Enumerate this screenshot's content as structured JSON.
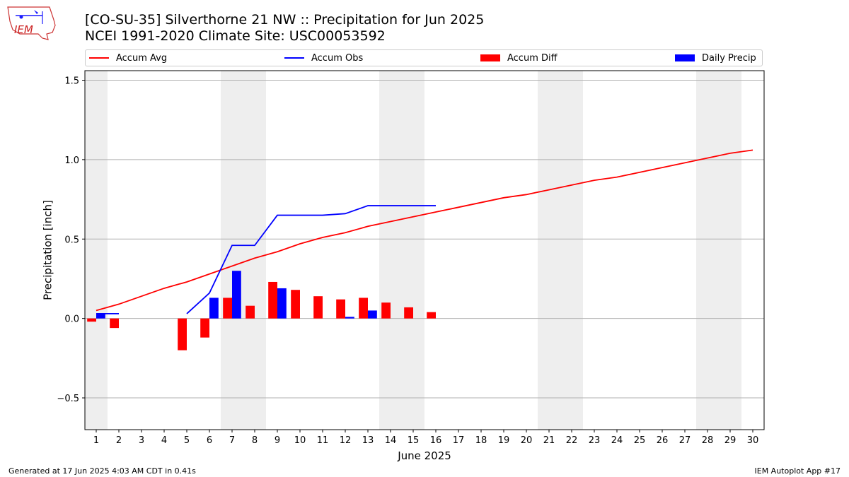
{
  "header": {
    "logo_text": "IEM",
    "title_line1": "[CO-SU-35] Silverthorne 21 NW :: Precipitation for Jun 2025",
    "title_line2": "NCEI 1991-2020 Climate Site: USC00053592"
  },
  "footer": {
    "generated": "Generated at 17 Jun 2025 4:03 AM CDT in 0.41s",
    "app": "IEM Autoplot App #17"
  },
  "colors": {
    "avg": "#ff0000",
    "obs": "#0000ff",
    "weekend_shade": "#eeeeee",
    "grid": "#b0b0b0"
  },
  "chart_data": {
    "type": "bar",
    "xlabel": "June 2025",
    "ylabel": "Precipitation [inch]",
    "xlim": [
      0.5,
      30.5
    ],
    "ylim": [
      -0.7,
      1.56
    ],
    "yticks": [
      -0.5,
      0.0,
      0.5,
      1.0,
      1.5
    ],
    "ytick_labels": [
      "−0.5",
      "0.0",
      "0.5",
      "1.0",
      "1.5"
    ],
    "x_ticks": [
      1,
      2,
      3,
      4,
      5,
      6,
      7,
      8,
      9,
      10,
      11,
      12,
      13,
      14,
      15,
      16,
      17,
      18,
      19,
      20,
      21,
      22,
      23,
      24,
      25,
      26,
      27,
      28,
      29,
      30
    ],
    "grid": "horizontal",
    "legend_position": "top",
    "weekend_shaded_days": [
      1,
      7,
      8,
      14,
      15,
      21,
      22,
      28,
      29
    ],
    "series": [
      {
        "name": "Accum Avg",
        "kind": "line",
        "x": [
          1,
          2,
          3,
          4,
          5,
          6,
          7,
          8,
          9,
          10,
          11,
          12,
          13,
          14,
          15,
          16,
          17,
          18,
          19,
          20,
          21,
          22,
          23,
          24,
          25,
          26,
          27,
          28,
          29,
          30
        ],
        "values": [
          0.05,
          0.09,
          0.14,
          0.19,
          0.23,
          0.28,
          0.33,
          0.38,
          0.42,
          0.47,
          0.51,
          0.54,
          0.58,
          0.61,
          0.64,
          0.67,
          0.7,
          0.73,
          0.76,
          0.78,
          0.81,
          0.84,
          0.87,
          0.89,
          0.92,
          0.95,
          0.98,
          1.01,
          1.04,
          1.06
        ]
      },
      {
        "name": "Accum Obs",
        "kind": "line",
        "segments": [
          {
            "x": [
              1,
              2
            ],
            "values": [
              0.03,
              0.03
            ]
          },
          {
            "x": [
              5,
              6,
              7,
              8,
              9,
              10,
              11,
              12,
              13,
              14,
              15,
              16
            ],
            "values": [
              0.03,
              0.16,
              0.46,
              0.46,
              0.65,
              0.65,
              0.65,
              0.66,
              0.71,
              0.71,
              0.71,
              0.71
            ]
          }
        ]
      },
      {
        "name": "Accum Diff",
        "kind": "bar",
        "x": [
          1,
          2,
          5,
          6,
          7,
          8,
          9,
          10,
          11,
          12,
          13,
          14,
          15,
          16
        ],
        "values": [
          -0.02,
          -0.06,
          -0.2,
          -0.12,
          0.13,
          0.08,
          0.23,
          0.18,
          0.14,
          0.12,
          0.13,
          0.1,
          0.07,
          0.04
        ]
      },
      {
        "name": "Daily Precip",
        "kind": "bar",
        "x": [
          1,
          6,
          7,
          9,
          12,
          13
        ],
        "values": [
          0.03,
          0.13,
          0.3,
          0.19,
          0.01,
          0.05
        ]
      }
    ]
  }
}
